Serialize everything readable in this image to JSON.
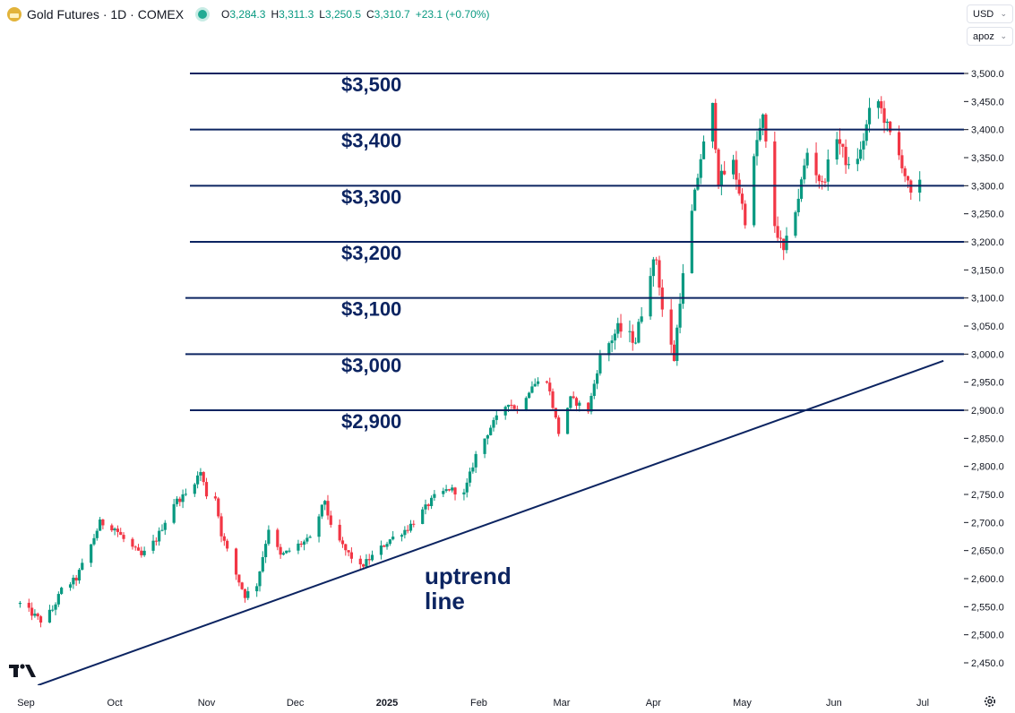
{
  "header": {
    "symbol": "Gold Futures · 1D · COMEX",
    "open_label": "O",
    "open": "3,284.3",
    "high_label": "H",
    "high": "3,311.3",
    "low_label": "L",
    "low": "3,250.5",
    "close_label": "C",
    "close": "3,310.7",
    "change": "+23.1 (+0.70%)"
  },
  "controls": {
    "currency": "USD",
    "unit": "apoz"
  },
  "icons": {
    "symbol": "gold-coin-icon",
    "status": "market-status-icon",
    "logo": "tradingview-logo-icon",
    "settings": "gear-icon",
    "dropdown": "chevron-down-icon"
  },
  "colors": {
    "up": "#089981",
    "down": "#f23645",
    "lines": "#0c2461",
    "axis_text": "#131722"
  },
  "chart_data": {
    "type": "candlestick",
    "title": "Gold Futures · 1D · COMEX",
    "ylim": [
      2420,
      3520
    ],
    "y_ticks": [
      "3,500.0",
      "3,450.0",
      "3,400.0",
      "3,350.0",
      "3,300.0",
      "3,250.0",
      "3,200.0",
      "3,150.0",
      "3,100.0",
      "3,050.0",
      "3,000.0",
      "2,950.0",
      "2,900.0",
      "2,850.0",
      "2,800.0",
      "2,750.0",
      "2,700.0",
      "2,650.0",
      "2,600.0",
      "2,550.0",
      "2,500.0",
      "2,450.0"
    ],
    "x_ticks": [
      {
        "label": "Sep",
        "date": "2024-09-01"
      },
      {
        "label": "Oct",
        "date": "2024-10-01"
      },
      {
        "label": "Nov",
        "date": "2024-11-01"
      },
      {
        "label": "Dec",
        "date": "2024-12-01"
      },
      {
        "label": "2025",
        "date": "2025-01-01",
        "bold": true
      },
      {
        "label": "Feb",
        "date": "2025-02-01"
      },
      {
        "label": "Mar",
        "date": "2025-03-01"
      },
      {
        "label": "Apr",
        "date": "2025-04-01"
      },
      {
        "label": "May",
        "date": "2025-05-01"
      },
      {
        "label": "Jun",
        "date": "2025-06-01"
      },
      {
        "label": "Jul",
        "date": "2025-07-01"
      }
    ],
    "horizontal_levels": [
      {
        "value": 3500,
        "label": "$3,500"
      },
      {
        "value": 3400,
        "label": "$3,400"
      },
      {
        "value": 3300,
        "label": "$3,300"
      },
      {
        "value": 3200,
        "label": "$3,200"
      },
      {
        "value": 3100,
        "label": "$3,100"
      },
      {
        "value": 3000,
        "label": "$3,000"
      },
      {
        "value": 2900,
        "label": "$2,900"
      }
    ],
    "trendline": {
      "label_lines": [
        "uptrend",
        "line"
      ],
      "start": {
        "date": "2024-09-05",
        "value": 2410
      },
      "end": {
        "date": "2025-07-08",
        "value": 2988
      }
    },
    "keypoints": [
      [
        "2024-08-30",
        2555
      ],
      [
        "2024-09-06",
        2525
      ],
      [
        "2024-09-10",
        2545
      ],
      [
        "2024-09-13",
        2580
      ],
      [
        "2024-09-18",
        2600
      ],
      [
        "2024-09-23",
        2660
      ],
      [
        "2024-09-26",
        2700
      ],
      [
        "2024-10-01",
        2690
      ],
      [
        "2024-10-04",
        2670
      ],
      [
        "2024-10-10",
        2640
      ],
      [
        "2024-10-15",
        2670
      ],
      [
        "2024-10-21",
        2735
      ],
      [
        "2024-10-25",
        2750
      ],
      [
        "2024-10-30",
        2790
      ],
      [
        "2024-11-01",
        2750
      ],
      [
        "2024-11-04",
        2745
      ],
      [
        "2024-11-06",
        2680
      ],
      [
        "2024-11-10",
        2620
      ],
      [
        "2024-11-14",
        2570
      ],
      [
        "2024-11-18",
        2590
      ],
      [
        "2024-11-22",
        2690
      ],
      [
        "2024-11-26",
        2640
      ],
      [
        "2024-12-02",
        2660
      ],
      [
        "2024-12-06",
        2670
      ],
      [
        "2024-12-11",
        2740
      ],
      [
        "2024-12-13",
        2690
      ],
      [
        "2024-12-18",
        2650
      ],
      [
        "2024-12-23",
        2620
      ],
      [
        "2024-12-27",
        2640
      ],
      [
        "2025-01-02",
        2670
      ],
      [
        "2025-01-08",
        2690
      ],
      [
        "2025-01-13",
        2720
      ],
      [
        "2025-01-17",
        2745
      ],
      [
        "2025-01-22",
        2760
      ],
      [
        "2025-01-27",
        2750
      ],
      [
        "2025-01-31",
        2820
      ],
      [
        "2025-02-05",
        2870
      ],
      [
        "2025-02-11",
        2915
      ],
      [
        "2025-02-14",
        2900
      ],
      [
        "2025-02-19",
        2945
      ],
      [
        "2025-02-24",
        2955
      ],
      [
        "2025-02-28",
        2860
      ],
      [
        "2025-03-04",
        2920
      ],
      [
        "2025-03-10",
        2900
      ],
      [
        "2025-03-14",
        2995
      ],
      [
        "2025-03-20",
        3045
      ],
      [
        "2025-03-26",
        3025
      ],
      [
        "2025-03-31",
        3150
      ],
      [
        "2025-04-02",
        3170
      ],
      [
        "2025-04-04",
        3080
      ],
      [
        "2025-04-08",
        2990
      ],
      [
        "2025-04-10",
        3100
      ],
      [
        "2025-04-14",
        3250
      ],
      [
        "2025-04-17",
        3350
      ],
      [
        "2025-04-21",
        3440
      ],
      [
        "2025-04-23",
        3310
      ],
      [
        "2025-04-28",
        3340
      ],
      [
        "2025-05-02",
        3240
      ],
      [
        "2025-05-06",
        3380
      ],
      [
        "2025-05-08",
        3420
      ],
      [
        "2025-05-12",
        3230
      ],
      [
        "2025-05-15",
        3180
      ],
      [
        "2025-05-20",
        3280
      ],
      [
        "2025-05-23",
        3360
      ],
      [
        "2025-05-28",
        3300
      ],
      [
        "2025-06-02",
        3390
      ],
      [
        "2025-06-06",
        3330
      ],
      [
        "2025-06-10",
        3360
      ],
      [
        "2025-06-13",
        3430
      ],
      [
        "2025-06-16",
        3450
      ],
      [
        "2025-06-20",
        3390
      ],
      [
        "2025-06-24",
        3340
      ],
      [
        "2025-06-27",
        3280
      ],
      [
        "2025-06-30",
        3310
      ]
    ]
  }
}
